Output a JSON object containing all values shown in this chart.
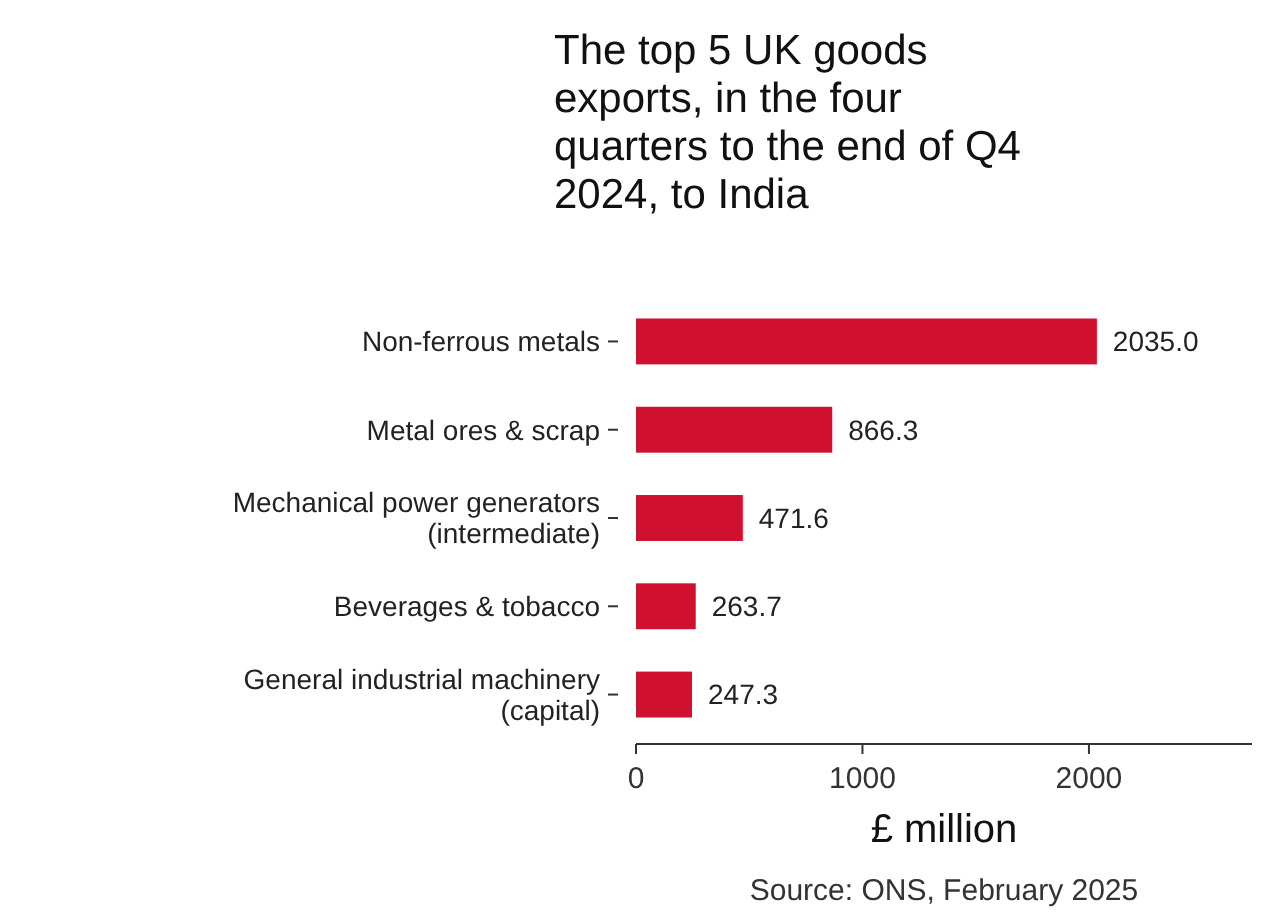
{
  "chart_data": {
    "type": "bar",
    "orientation": "horizontal",
    "title": "The top 5 UK goods exports, in the four quarters to the end of Q4 2024, to India",
    "categories": [
      "Non-ferrous metals",
      "Metal ores & scrap",
      "Mechanical power generators\n(intermediate)",
      "Beverages & tobacco",
      "General industrial machinery\n(capital)"
    ],
    "values": [
      2035.0,
      866.3,
      471.6,
      263.7,
      247.3
    ],
    "value_labels": [
      "2035.0",
      "866.3",
      "471.6",
      "263.7",
      "247.3"
    ],
    "color": "#d0102f",
    "xlim": [
      0,
      2720
    ],
    "xticks": [
      0,
      1000,
      2000
    ],
    "xlabel": "£ million",
    "annotations": [
      "Source: ONS, February 2025"
    ],
    "grid": false
  }
}
